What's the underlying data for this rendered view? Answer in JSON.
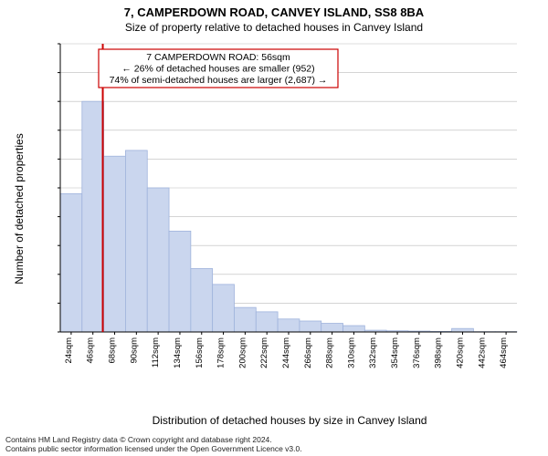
{
  "title": "7, CAMPERDOWN ROAD, CANVEY ISLAND, SS8 8BA",
  "subtitle": "Size of property relative to detached houses in Canvey Island",
  "ylabel": "Number of detached properties",
  "xlabel": "Distribution of detached houses by size in Canvey Island",
  "attribution_line1": "Contains HM Land Registry data © Crown copyright and database right 2024.",
  "attribution_line2": "Contains public sector information licensed under the Open Government Licence v3.0.",
  "chart": {
    "type": "histogram",
    "background_color": "#ffffff",
    "bar_fill": "#cad6ee",
    "bar_stroke": "#9fb3dc",
    "grid_color": "#bbbbbb",
    "axis_color": "#000000",
    "marker_line_color": "#cc0000",
    "annotation_border": "#cc0000",
    "annotation_bg": "#ffffff",
    "ylim": [
      0,
      1000
    ],
    "ytick_step": 100,
    "bin_start": 13,
    "bin_width": 22,
    "label_fontsize": 12,
    "tick_fontsize": 10,
    "title_fontsize": 13,
    "bins": [
      {
        "label": "24sqm",
        "count": 480
      },
      {
        "label": "46sqm",
        "count": 800
      },
      {
        "label": "68sqm",
        "count": 610
      },
      {
        "label": "90sqm",
        "count": 630
      },
      {
        "label": "112sqm",
        "count": 500
      },
      {
        "label": "134sqm",
        "count": 350
      },
      {
        "label": "156sqm",
        "count": 220
      },
      {
        "label": "178sqm",
        "count": 165
      },
      {
        "label": "200sqm",
        "count": 85
      },
      {
        "label": "222sqm",
        "count": 70
      },
      {
        "label": "244sqm",
        "count": 45
      },
      {
        "label": "266sqm",
        "count": 38
      },
      {
        "label": "288sqm",
        "count": 30
      },
      {
        "label": "310sqm",
        "count": 22
      },
      {
        "label": "332sqm",
        "count": 6
      },
      {
        "label": "354sqm",
        "count": 4
      },
      {
        "label": "376sqm",
        "count": 3
      },
      {
        "label": "398sqm",
        "count": 2
      },
      {
        "label": "420sqm",
        "count": 12
      },
      {
        "label": "442sqm",
        "count": 1
      },
      {
        "label": "464sqm",
        "count": 1
      }
    ],
    "marker": {
      "value_sqm": 56,
      "line1": "7 CAMPERDOWN ROAD: 56sqm",
      "line2": "← 26% of detached houses are smaller (952)",
      "line3": "74% of semi-detached houses are larger (2,687) →"
    }
  }
}
